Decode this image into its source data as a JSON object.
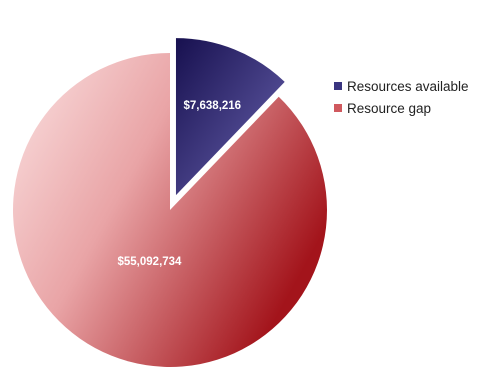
{
  "chart_data": {
    "type": "pie",
    "title": "",
    "slices": [
      {
        "label": "Resources available",
        "value": 7638216,
        "value_label": "$7,638,216",
        "color": "#2a2466",
        "exploded": true
      },
      {
        "label": "Resource gap",
        "value": 55092734,
        "value_label": "$55,092,734",
        "color": "#c8484e",
        "exploded": false
      }
    ],
    "legend_position": "right"
  }
}
